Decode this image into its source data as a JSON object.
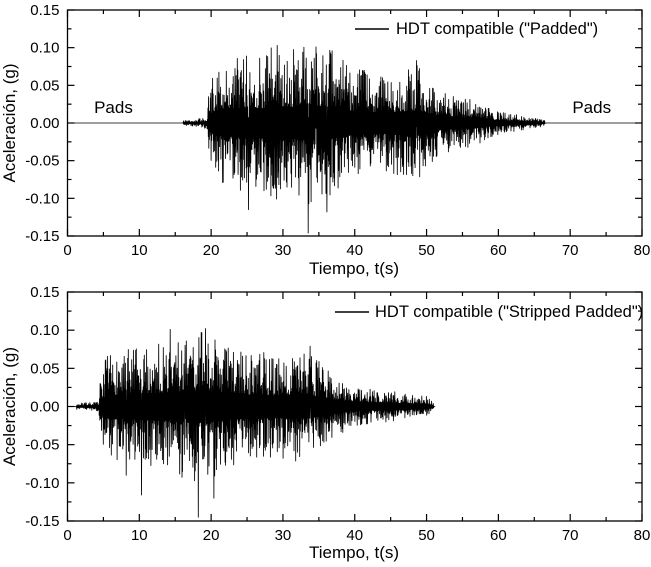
{
  "figure": {
    "background": "#ffffff",
    "line_color": "#000000",
    "text_color": "#000000"
  },
  "chart_data": [
    {
      "type": "line",
      "legend": "HDT compatible (\"Padded\")",
      "xlabel": "Tiempo, t(s)",
      "ylabel": "Aceleración, (g)",
      "xlim": [
        0,
        80
      ],
      "ylim": [
        -0.15,
        0.15
      ],
      "xticks": [
        0,
        10,
        20,
        30,
        40,
        50,
        60,
        70,
        80
      ],
      "xtick_minor_step": 5,
      "yticks": [
        -0.15,
        -0.1,
        -0.05,
        0.0,
        0.05,
        0.1,
        0.15
      ],
      "ytick_labels": [
        "-0.15",
        "-0.10",
        "-0.05",
        "0.00",
        "0.05",
        "0.10",
        "0.15"
      ],
      "ytick_minor_step": 0.025,
      "grid": false,
      "legend_position": "top-right-inside",
      "annotations": [
        {
          "text": "Pads",
          "t": 6.4,
          "a": 0.02
        },
        {
          "text": "Pads",
          "t": 73.0,
          "a": 0.02
        }
      ],
      "signal": {
        "trace": [
          0,
          80
        ],
        "start": 16.1,
        "end": 66.5,
        "dt": 0.04,
        "seed": 42,
        "envelope": [
          [
            16.1,
            0.003
          ],
          [
            19.4,
            0.006
          ],
          [
            19.8,
            0.045
          ],
          [
            21,
            0.065
          ],
          [
            23,
            0.07
          ],
          [
            25,
            0.08
          ],
          [
            27,
            0.075
          ],
          [
            29,
            0.09
          ],
          [
            31,
            0.08
          ],
          [
            33,
            0.09
          ],
          [
            35,
            0.09
          ],
          [
            37,
            0.08
          ],
          [
            39,
            0.065
          ],
          [
            41,
            0.06
          ],
          [
            43,
            0.055
          ],
          [
            45,
            0.055
          ],
          [
            47,
            0.06
          ],
          [
            49,
            0.065
          ],
          [
            50,
            0.05
          ],
          [
            52,
            0.035
          ],
          [
            54,
            0.03
          ],
          [
            57,
            0.025
          ],
          [
            59,
            0.015
          ],
          [
            62,
            0.01
          ],
          [
            64,
            0.008
          ],
          [
            66.5,
            0.003
          ]
        ],
        "peaks": [
          [
            25.2,
            -0.115
          ],
          [
            29.2,
            0.103
          ],
          [
            33.5,
            -0.146
          ],
          [
            34.6,
            0.101
          ],
          [
            36.1,
            -0.118
          ],
          [
            48.6,
            0.083
          ]
        ]
      }
    },
    {
      "type": "line",
      "legend": "HDT compatible (\"Stripped Padded\")",
      "xlabel": "Tiempo, t(s)",
      "ylabel": "Aceleración, (g)",
      "xlim": [
        0,
        80
      ],
      "ylim": [
        -0.15,
        0.15
      ],
      "xticks": [
        0,
        10,
        20,
        30,
        40,
        50,
        60,
        70,
        80
      ],
      "xtick_minor_step": 5,
      "yticks": [
        -0.15,
        -0.1,
        -0.05,
        0.0,
        0.05,
        0.1,
        0.15
      ],
      "ytick_labels": [
        "-0.15",
        "-0.10",
        "-0.05",
        "0.00",
        "0.05",
        "0.10",
        "0.15"
      ],
      "ytick_minor_step": 0.025,
      "grid": false,
      "legend_position": "top-right-inside",
      "annotations": [],
      "signal": {
        "trace": [
          0.5,
          51.2
        ],
        "start": 1.2,
        "end": 51.0,
        "dt": 0.04,
        "seed": 7,
        "envelope": [
          [
            1.2,
            0.003
          ],
          [
            2,
            0.004
          ],
          [
            4.3,
            0.005
          ],
          [
            4.7,
            0.04
          ],
          [
            5.5,
            0.055
          ],
          [
            7,
            0.06
          ],
          [
            9,
            0.065
          ],
          [
            11,
            0.065
          ],
          [
            13,
            0.07
          ],
          [
            15,
            0.075
          ],
          [
            17,
            0.08
          ],
          [
            19,
            0.085
          ],
          [
            21,
            0.075
          ],
          [
            23,
            0.065
          ],
          [
            25,
            0.06
          ],
          [
            27,
            0.06
          ],
          [
            29,
            0.055
          ],
          [
            31,
            0.06
          ],
          [
            33,
            0.06
          ],
          [
            35,
            0.05
          ],
          [
            37,
            0.035
          ],
          [
            39,
            0.025
          ],
          [
            41,
            0.02
          ],
          [
            44,
            0.018
          ],
          [
            47,
            0.015
          ],
          [
            50,
            0.012
          ],
          [
            51,
            0.004
          ]
        ],
        "peaks": [
          [
            8.2,
            -0.09
          ],
          [
            10.3,
            -0.116
          ],
          [
            14.3,
            0.101
          ],
          [
            16.4,
            0.08
          ],
          [
            18.2,
            -0.145
          ],
          [
            19.2,
            0.102
          ],
          [
            20.4,
            -0.12
          ],
          [
            33.8,
            0.079
          ]
        ]
      }
    }
  ]
}
